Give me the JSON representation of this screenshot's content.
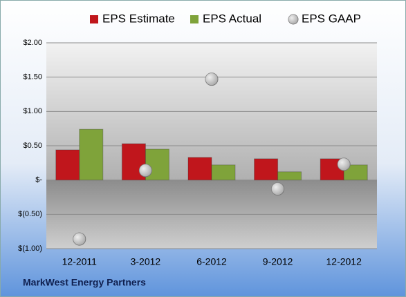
{
  "chart_data": {
    "type": "bar",
    "categories": [
      "12-2011",
      "3-2012",
      "6-2012",
      "9-2012",
      "12-2012"
    ],
    "series": [
      {
        "name": "EPS Estimate",
        "type": "bar",
        "color": "#c0161c",
        "values": [
          0.44,
          0.53,
          0.33,
          0.31,
          0.31
        ]
      },
      {
        "name": "EPS Actual",
        "type": "bar",
        "color": "#7fa33a",
        "values": [
          0.74,
          0.45,
          0.22,
          0.12,
          0.22
        ]
      },
      {
        "name": "EPS GAAP",
        "type": "scatter",
        "color": "#a9a9a9",
        "values": [
          -0.86,
          0.14,
          1.47,
          -0.13,
          0.23
        ]
      }
    ],
    "ylim": [
      -1.0,
      2.0
    ],
    "yticks": [
      {
        "value": -1.0,
        "label": "$(1.00)"
      },
      {
        "value": -0.5,
        "label": "$(0.50)"
      },
      {
        "value": 0,
        "label": "$-"
      },
      {
        "value": 0.5,
        "label": "$0.50"
      },
      {
        "value": 1.0,
        "label": "$1.00"
      },
      {
        "value": 1.5,
        "label": "$1.50"
      },
      {
        "value": 2.0,
        "label": "$2.00"
      }
    ],
    "grid": true,
    "legend": "top",
    "footer": "MarkWest Energy Partners"
  }
}
